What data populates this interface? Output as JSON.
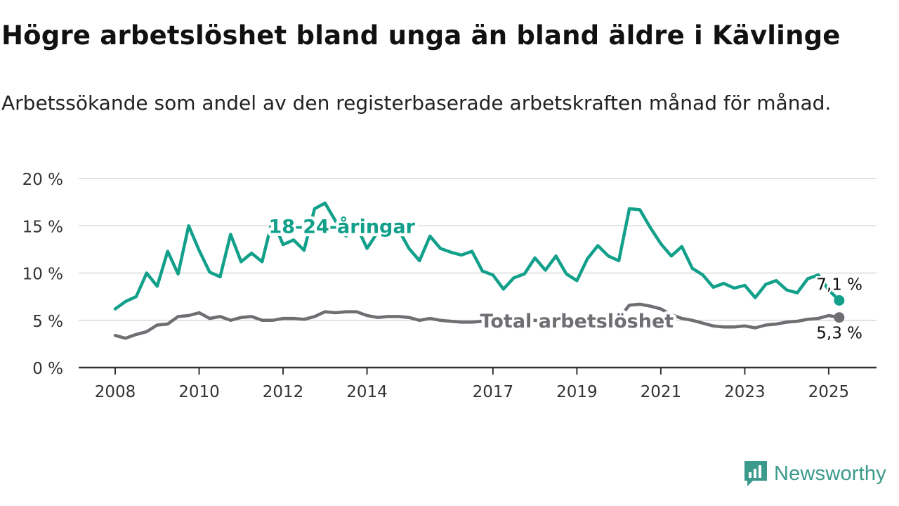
{
  "title": "Högre arbetslöshet bland unga än bland äldre i Kävlinge",
  "subtitle": "Arbetssökande som andel av den registerbaserade arbetskraften månad för månad.",
  "brand": {
    "name": "Newsworthy",
    "color": "#3b9a8c",
    "icon": "newsworthy-chart-icon"
  },
  "chart_data": {
    "type": "line",
    "title": "Högre arbetslöshet bland unga än bland äldre i Kävlinge",
    "subtitle": "Arbetssökande som andel av den registerbaserade arbetskraften månad för månad.",
    "xlabel": "",
    "ylabel": "",
    "x_unit": "year",
    "xlim": [
      2007.9,
      2026.3
    ],
    "ylim": [
      0,
      20
    ],
    "yticks": [
      0,
      5,
      10,
      15,
      20
    ],
    "ytick_labels": [
      "0 %",
      "5 %",
      "10 %",
      "15 %",
      "20 %"
    ],
    "xticks": [
      2008,
      2010,
      2012,
      2014,
      2017,
      2019,
      2021,
      2023,
      2025
    ],
    "xtick_labels": [
      "2008",
      "2010",
      "2012",
      "2014",
      "2017",
      "2019",
      "2021",
      "2023",
      "2025"
    ],
    "grid": true,
    "series": [
      {
        "name": "18-24-åringar",
        "color": "#12a08b",
        "end_label": "7,1 %",
        "x": [
          2008.0,
          2008.25,
          2008.5,
          2008.75,
          2009.0,
          2009.25,
          2009.5,
          2009.75,
          2010.0,
          2010.25,
          2010.5,
          2010.75,
          2011.0,
          2011.25,
          2011.5,
          2011.75,
          2012.0,
          2012.25,
          2012.5,
          2012.75,
          2013.0,
          2013.25,
          2013.5,
          2013.75,
          2014.0,
          2014.25,
          2014.5,
          2014.75,
          2015.0,
          2015.25,
          2015.5,
          2015.75,
          2016.0,
          2016.25,
          2016.5,
          2016.75,
          2017.0,
          2017.25,
          2017.5,
          2017.75,
          2018.0,
          2018.25,
          2018.5,
          2018.75,
          2019.0,
          2019.25,
          2019.5,
          2019.75,
          2020.0,
          2020.25,
          2020.5,
          2020.75,
          2021.0,
          2021.25,
          2021.5,
          2021.75,
          2022.0,
          2022.25,
          2022.5,
          2022.75,
          2023.0,
          2023.25,
          2023.5,
          2023.75,
          2024.0,
          2024.25,
          2024.5,
          2024.75,
          2025.0,
          2025.25
        ],
        "y": [
          6.2,
          7.0,
          7.5,
          10.0,
          8.6,
          12.3,
          9.9,
          15.0,
          12.4,
          10.1,
          9.6,
          14.1,
          11.2,
          12.1,
          11.2,
          15.7,
          13.0,
          13.5,
          12.4,
          16.8,
          17.4,
          15.5,
          13.9,
          15.0,
          12.6,
          14.3,
          13.7,
          14.6,
          12.6,
          11.3,
          13.9,
          12.6,
          12.2,
          11.9,
          12.3,
          10.2,
          9.8,
          8.3,
          9.5,
          9.9,
          11.6,
          10.3,
          11.8,
          9.9,
          9.2,
          11.5,
          12.9,
          11.8,
          11.3,
          16.8,
          16.7,
          14.8,
          13.1,
          11.8,
          12.8,
          10.5,
          9.8,
          8.5,
          8.9,
          8.4,
          8.7,
          7.4,
          8.8,
          9.2,
          8.2,
          7.9,
          9.4,
          9.8,
          8.2,
          7.1
        ]
      },
      {
        "name": "Total arbetslöshet",
        "color": "#6e6e73",
        "end_label": "5,3 %",
        "x": [
          2008.0,
          2008.25,
          2008.5,
          2008.75,
          2009.0,
          2009.25,
          2009.5,
          2009.75,
          2010.0,
          2010.25,
          2010.5,
          2010.75,
          2011.0,
          2011.25,
          2011.5,
          2011.75,
          2012.0,
          2012.25,
          2012.5,
          2012.75,
          2013.0,
          2013.25,
          2013.5,
          2013.75,
          2014.0,
          2014.25,
          2014.5,
          2014.75,
          2015.0,
          2015.25,
          2015.5,
          2015.75,
          2016.0,
          2016.25,
          2016.5,
          2016.75,
          2017.0,
          2017.25,
          2017.5,
          2017.75,
          2018.0,
          2018.25,
          2018.5,
          2018.75,
          2019.0,
          2019.25,
          2019.5,
          2019.75,
          2020.0,
          2020.25,
          2020.5,
          2020.75,
          2021.0,
          2021.25,
          2021.5,
          2021.75,
          2022.0,
          2022.25,
          2022.5,
          2022.75,
          2023.0,
          2023.25,
          2023.5,
          2023.75,
          2024.0,
          2024.25,
          2024.5,
          2024.75,
          2025.0,
          2025.25
        ],
        "y": [
          3.4,
          3.1,
          3.5,
          3.8,
          4.5,
          4.6,
          5.4,
          5.5,
          5.8,
          5.2,
          5.4,
          5.0,
          5.3,
          5.4,
          5.0,
          5.0,
          5.2,
          5.2,
          5.1,
          5.4,
          5.9,
          5.8,
          5.9,
          5.9,
          5.5,
          5.3,
          5.4,
          5.4,
          5.3,
          5.0,
          5.2,
          5.0,
          4.9,
          4.8,
          4.8,
          4.9,
          4.8,
          4.9,
          4.9,
          5.0,
          5.0,
          4.9,
          4.9,
          4.8,
          4.8,
          5.0,
          5.1,
          5.1,
          5.2,
          6.6,
          6.7,
          6.5,
          6.2,
          5.6,
          5.2,
          5.0,
          4.7,
          4.4,
          4.3,
          4.3,
          4.4,
          4.2,
          4.5,
          4.6,
          4.8,
          4.9,
          5.1,
          5.2,
          5.5,
          5.3
        ]
      }
    ],
    "inline_labels": [
      {
        "series": "18-24-åringar",
        "x": 2013.4,
        "y": 15.0
      },
      {
        "series": "Total arbetslöshet",
        "x": 2019.0,
        "y": 5.0
      }
    ]
  }
}
